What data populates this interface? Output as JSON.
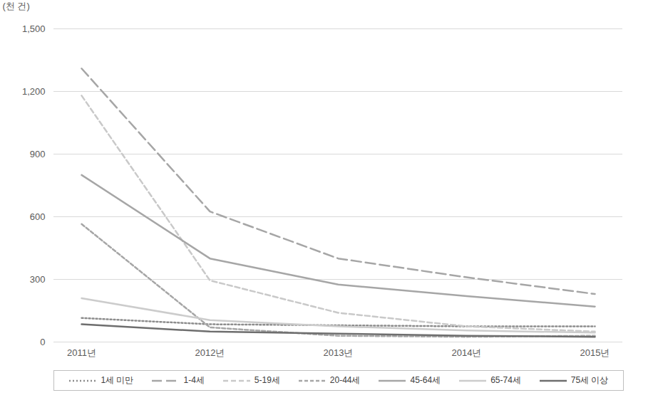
{
  "chart_data": {
    "type": "line",
    "y_label": "(천 건)",
    "categories": [
      "2011년",
      "2012년",
      "2013년",
      "2014년",
      "2015년"
    ],
    "series": [
      {
        "name": "1세 미만",
        "color": "#8c8c8c",
        "line_style": "dotted",
        "values": [
          115,
          85,
          80,
          75,
          75
        ]
      },
      {
        "name": "1-4세",
        "color": "#a6a6a6",
        "line_style": "longdash",
        "values": [
          1310,
          625,
          400,
          310,
          230
        ]
      },
      {
        "name": "5-19세",
        "color": "#c9c9c9",
        "line_style": "dashed",
        "values": [
          1180,
          295,
          140,
          75,
          50
        ]
      },
      {
        "name": "20-44세",
        "color": "#a6a6a6",
        "line_style": "shortdash",
        "values": [
          565,
          70,
          30,
          25,
          30
        ]
      },
      {
        "name": "45-64세",
        "color": "#a6a6a6",
        "line_style": "solid",
        "values": [
          800,
          400,
          275,
          220,
          170
        ]
      },
      {
        "name": "65-74세",
        "color": "#cccccc",
        "line_style": "solid",
        "values": [
          210,
          105,
          75,
          55,
          45
        ]
      },
      {
        "name": "75세 이상",
        "color": "#6e6e6e",
        "line_style": "solid",
        "values": [
          85,
          50,
          40,
          30,
          25
        ]
      }
    ],
    "ylim": [
      0,
      1500
    ],
    "yticks": [
      0,
      300,
      600,
      900,
      {
        "value": 1200,
        "label": "1,200"
      },
      {
        "value": 1500,
        "label": "1,500"
      }
    ],
    "grid": true,
    "legend": "bottom"
  }
}
